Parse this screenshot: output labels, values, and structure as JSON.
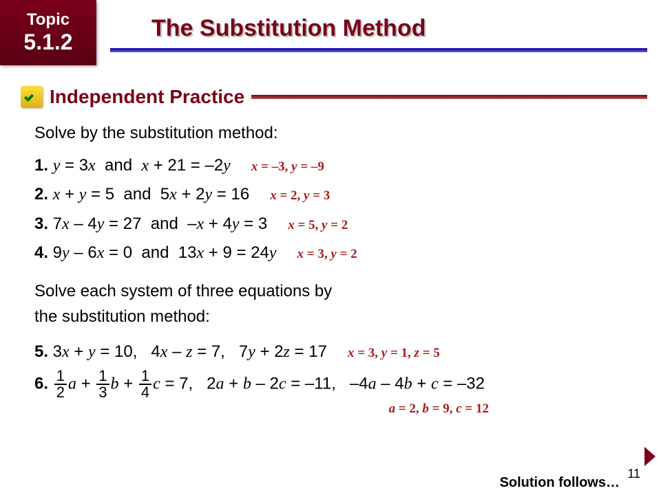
{
  "topic": {
    "label": "Topic",
    "number": "5.1.2"
  },
  "title": "The Substitution Method",
  "section": "Independent Practice",
  "intro1": "Solve by the substitution method:",
  "problems": [
    {
      "n": "1.",
      "eq": "y = 3x  and  x + 21 = –2y",
      "ans": "x = –3, y = –9"
    },
    {
      "n": "2.",
      "eq": "x + y = 5  and  5x + 2y = 16",
      "ans": "x = 2, y = 3"
    },
    {
      "n": "3.",
      "eq": "7x – 4y = 27  and  –x + 4y = 3",
      "ans": "x = 5, y = 2"
    },
    {
      "n": "4.",
      "eq": "9y – 6x = 0  and  13x + 9 = 24y",
      "ans": "x = 3, y = 2"
    }
  ],
  "intro2a": "Solve each system of three equations by",
  "intro2b": "the substitution method:",
  "p5": {
    "n": "5.",
    "eq": "3x + y = 10,   4x – z = 7,   7y + 2z = 17",
    "ans": "x = 3, y = 1, z = 5"
  },
  "p6": {
    "n": "6.",
    "f1n": "1",
    "f1d": "2",
    "f2n": "1",
    "f2d": "3",
    "f3n": "1",
    "f3d": "4",
    "rest": " = 7,   2a + b – 2c = –11,   –4a – 4b + c = –32",
    "ans": "a = 2, b = 9, c = 12"
  },
  "pageNum": "11",
  "solutionFollows": "Solution follows…",
  "colors": {
    "brand": "#7a001a",
    "accent_line": "#1a0099",
    "answer": "#aa1a1a"
  }
}
